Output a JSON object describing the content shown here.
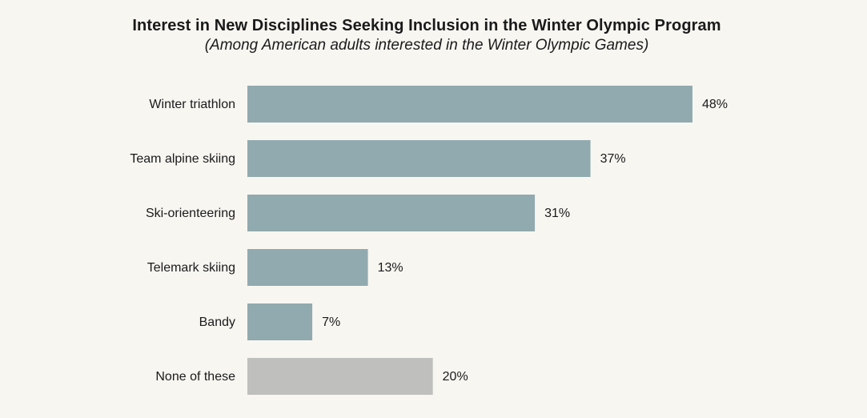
{
  "colors": {
    "background": "#f8f6f1",
    "bar": "#91aaaf",
    "bar_none": "#bfbfbd",
    "text": "#1a1a1a"
  },
  "chart_data": {
    "type": "bar",
    "orientation": "horizontal",
    "title": "Interest in New Disciplines Seeking Inclusion in the Winter Olympic Program",
    "subtitle": "(Among American adults interested in the Winter Olympic Games)",
    "categories": [
      "Winter triathlon",
      "Team alpine skiing",
      "Ski-orienteering",
      "Telemark skiing",
      "Bandy",
      "None of these"
    ],
    "values": [
      48,
      37,
      31,
      13,
      7,
      20
    ],
    "value_labels": [
      "48%",
      "37%",
      "31%",
      "13%",
      "7%",
      "20%"
    ],
    "unit": "%",
    "xlim": [
      0,
      48
    ],
    "grid": false,
    "legend": "none"
  }
}
